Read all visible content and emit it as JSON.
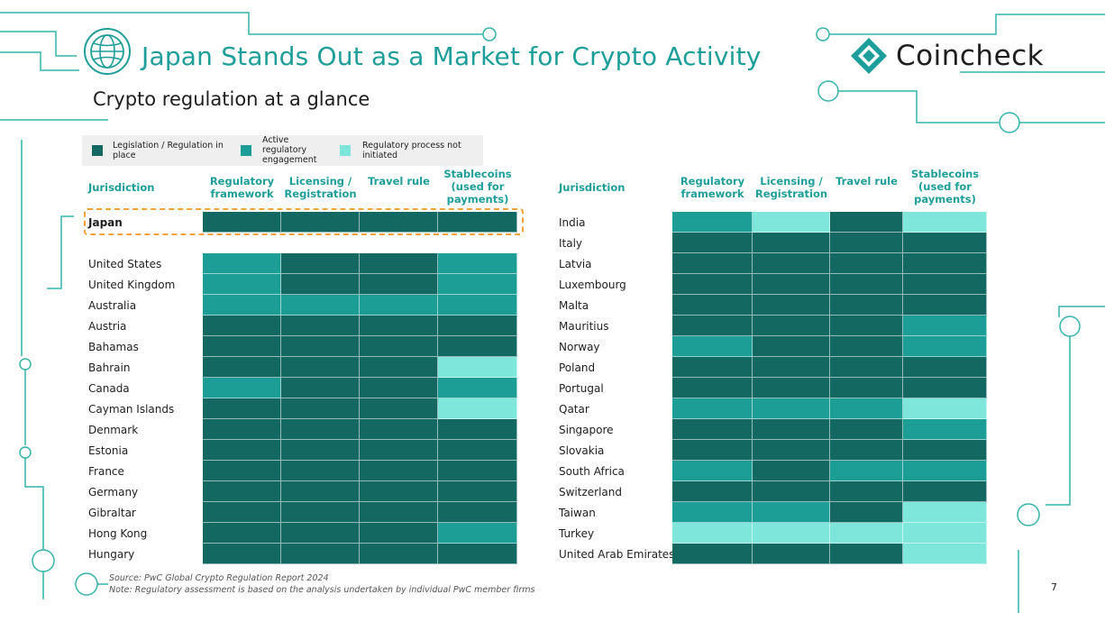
{
  "title": "Japan Stands Out as a Market for Crypto Activity",
  "subtitle": "Crypto regulation at a glance",
  "brand": "Coincheck",
  "page_number": "7",
  "colors": {
    "accent": "#1e9e9a",
    "highlight": "#f2a23b",
    "L": "#136962",
    "E": "#1c9e96",
    "N": "#7fe6dc"
  },
  "legend": [
    {
      "code": "L",
      "label": "Legislation / Regulation in place"
    },
    {
      "code": "E",
      "label": "Active regulatory engagement"
    },
    {
      "code": "N",
      "label": "Regulatory process not initiated"
    }
  ],
  "headers": [
    "Jurisdiction",
    "Regulatory framework",
    "Licensing / Registration",
    "Travel rule",
    "Stablecoins (used for payments)"
  ],
  "left_featured": {
    "name": "Japan",
    "values": [
      "L",
      "L",
      "L",
      "L"
    ]
  },
  "left_rows": [
    {
      "name": "United States",
      "values": [
        "E",
        "L",
        "L",
        "E"
      ]
    },
    {
      "name": "United Kingdom",
      "values": [
        "E",
        "L",
        "L",
        "E"
      ]
    },
    {
      "name": "Australia",
      "values": [
        "E",
        "E",
        "E",
        "E"
      ]
    },
    {
      "name": "Austria",
      "values": [
        "L",
        "L",
        "L",
        "L"
      ]
    },
    {
      "name": "Bahamas",
      "values": [
        "L",
        "L",
        "L",
        "L"
      ]
    },
    {
      "name": "Bahrain",
      "values": [
        "L",
        "L",
        "L",
        "N"
      ]
    },
    {
      "name": "Canada",
      "values": [
        "E",
        "L",
        "L",
        "E"
      ]
    },
    {
      "name": "Cayman Islands",
      "values": [
        "L",
        "L",
        "L",
        "N"
      ]
    },
    {
      "name": "Denmark",
      "values": [
        "L",
        "L",
        "L",
        "L"
      ]
    },
    {
      "name": "Estonia",
      "values": [
        "L",
        "L",
        "L",
        "L"
      ]
    },
    {
      "name": "France",
      "values": [
        "L",
        "L",
        "L",
        "L"
      ]
    },
    {
      "name": "Germany",
      "values": [
        "L",
        "L",
        "L",
        "L"
      ]
    },
    {
      "name": "Gibraltar",
      "values": [
        "L",
        "L",
        "L",
        "L"
      ]
    },
    {
      "name": "Hong Kong",
      "values": [
        "L",
        "L",
        "L",
        "E"
      ]
    },
    {
      "name": "Hungary",
      "values": [
        "L",
        "L",
        "L",
        "L"
      ]
    }
  ],
  "right_rows": [
    {
      "name": "India",
      "values": [
        "E",
        "N",
        "L",
        "N"
      ]
    },
    {
      "name": "Italy",
      "values": [
        "L",
        "L",
        "L",
        "L"
      ]
    },
    {
      "name": "Latvia",
      "values": [
        "L",
        "L",
        "L",
        "L"
      ]
    },
    {
      "name": "Luxembourg",
      "values": [
        "L",
        "L",
        "L",
        "L"
      ]
    },
    {
      "name": "Malta",
      "values": [
        "L",
        "L",
        "L",
        "L"
      ]
    },
    {
      "name": "Mauritius",
      "values": [
        "L",
        "L",
        "L",
        "E"
      ]
    },
    {
      "name": "Norway",
      "values": [
        "E",
        "L",
        "L",
        "E"
      ]
    },
    {
      "name": "Poland",
      "values": [
        "L",
        "L",
        "L",
        "L"
      ]
    },
    {
      "name": "Portugal",
      "values": [
        "L",
        "L",
        "L",
        "L"
      ]
    },
    {
      "name": "Qatar",
      "values": [
        "E",
        "E",
        "E",
        "N"
      ]
    },
    {
      "name": "Singapore",
      "values": [
        "L",
        "L",
        "L",
        "E"
      ]
    },
    {
      "name": "Slovakia",
      "values": [
        "L",
        "L",
        "L",
        "L"
      ]
    },
    {
      "name": "South Africa",
      "values": [
        "E",
        "L",
        "E",
        "E"
      ]
    },
    {
      "name": "Switzerland",
      "values": [
        "L",
        "L",
        "L",
        "L"
      ]
    },
    {
      "name": "Taiwan",
      "values": [
        "E",
        "E",
        "L",
        "N"
      ]
    },
    {
      "name": "Turkey",
      "values": [
        "N",
        "N",
        "N",
        "N"
      ]
    },
    {
      "name": "United Arab Emirates",
      "values": [
        "L",
        "L",
        "L",
        "N"
      ]
    }
  ],
  "source": "Source: PwC Global Crypto Regulation Report 2024",
  "note": "Note: Regulatory assessment is based on the analysis undertaken by individual PwC member firms"
}
